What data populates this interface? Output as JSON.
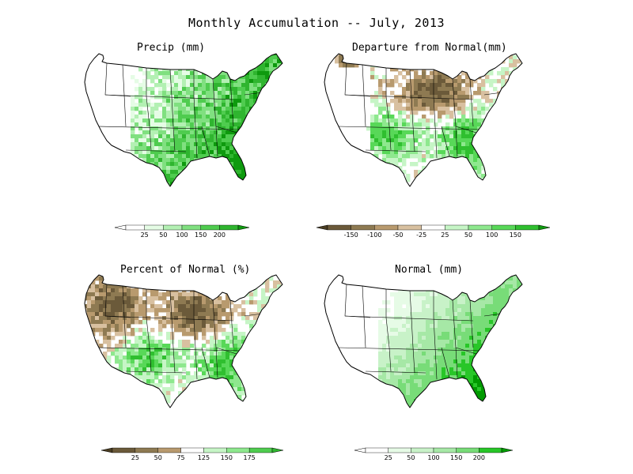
{
  "title": "Monthly Accumulation -- July, 2013",
  "palettes": {
    "green": [
      "#ffffff",
      "#e5fce5",
      "#b3f0b3",
      "#80e080",
      "#4fcc4f",
      "#2fb52f",
      "#0e9a0e"
    ],
    "diverging_brown": [
      "#6b5a3a",
      "#8e7a52",
      "#b89a6e",
      "#d8c0a0"
    ],
    "diverging_green": [
      "#c6f5c6",
      "#8ee88e",
      "#58d858",
      "#2fbf2f"
    ],
    "normal_green": [
      "#ffffff",
      "#e6fbe6",
      "#c8f2c8",
      "#a6e8a6",
      "#78dc78",
      "#28c628",
      "#009a00"
    ]
  },
  "panels": [
    {
      "id": "precip",
      "title": "Precip (mm)",
      "scheme": "precip",
      "colorbar": {
        "labels": [
          "25",
          "50",
          "100",
          "150",
          "200"
        ],
        "colors": [
          "#ffffff",
          "#e5fce5",
          "#b3f0b3",
          "#80e080",
          "#4fcc4f",
          "#2fb52f"
        ],
        "end_left": "#ffffff",
        "end_right": "#0e9a0e"
      }
    },
    {
      "id": "departure",
      "title": "Departure from Normal(mm)",
      "scheme": "departure",
      "colorbar": {
        "labels": [
          "-150",
          "-100",
          "-50",
          "-25",
          "25",
          "50",
          "100",
          "150"
        ],
        "colors": [
          "#6b5a3a",
          "#8e7a52",
          "#b89a6e",
          "#d8c0a0",
          "#ffffff",
          "#c6f5c6",
          "#8ee88e",
          "#58d858",
          "#2fbf2f"
        ],
        "end_left": "#4a3d22",
        "end_right": "#0e9a0e"
      }
    },
    {
      "id": "percent",
      "title": "Percent of Normal (%)",
      "scheme": "percent",
      "colorbar": {
        "labels": [
          "25",
          "50",
          "75",
          "125",
          "150",
          "175"
        ],
        "colors": [
          "#6b5a3a",
          "#8e7a52",
          "#b89a6e",
          "#ffffff",
          "#c6f5c6",
          "#8ee88e",
          "#4fcc4f"
        ],
        "end_left": "#4a3d22",
        "end_right": "#2fb52f"
      }
    },
    {
      "id": "normal",
      "title": "Normal (mm)",
      "scheme": "normal",
      "colorbar": {
        "labels": [
          "25",
          "50",
          "100",
          "150",
          "200"
        ],
        "colors": [
          "#ffffff",
          "#e6fbe6",
          "#c8f2c8",
          "#a6e8a6",
          "#78dc78",
          "#28c628"
        ],
        "end_left": "#ffffff",
        "end_right": "#009a00"
      }
    }
  ]
}
